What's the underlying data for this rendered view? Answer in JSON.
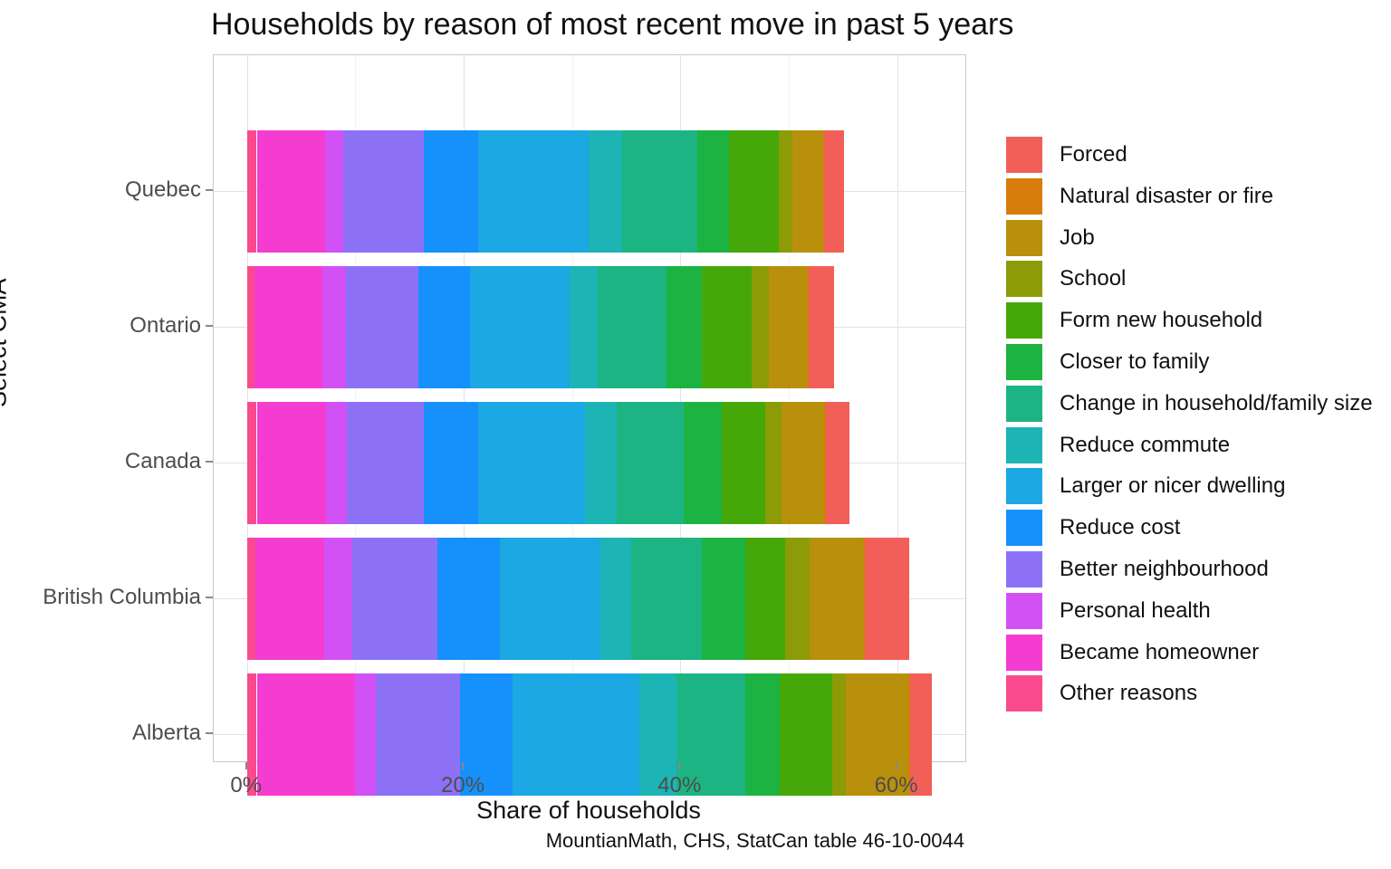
{
  "title": "Households by reason of most recent move in past 5 years",
  "caption": "MountianMath, CHS, StatCan table 46-10-0044",
  "x_axis": {
    "label": "Share of households",
    "tick_labels": [
      "0%",
      "20%",
      "40%",
      "60%"
    ],
    "tick_values": [
      0,
      20,
      40,
      60
    ],
    "minor_tick_values": [
      10,
      30,
      50
    ]
  },
  "y_axis": {
    "label": "Select CMA",
    "categories": [
      "Quebec",
      "Ontario",
      "Canada",
      "British Columbia",
      "Alberta"
    ]
  },
  "colors": {
    "grid_major": "#e3e3e3",
    "grid_minor": "#f1f1f1",
    "panel_border": "#c9c9c9",
    "axis_text": "#4d4d4d",
    "text": "#111111"
  },
  "chart_data": {
    "type": "bar",
    "orientation": "horizontal",
    "stacked": true,
    "stack_order": "reversed (last legend entry leftmost, Forced rightmost)",
    "legend_position": "right",
    "grid": "on",
    "xlim": [
      -3.07,
      66.3
    ],
    "title": "Households by reason of most recent move in past 5 years",
    "xlabel": "Share of households",
    "ylabel": "Select CMA",
    "categories": [
      "Quebec",
      "Ontario",
      "Canada",
      "British Columbia",
      "Alberta"
    ],
    "units": "percent of households",
    "series": [
      {
        "name": "Forced",
        "color": "#F25F59",
        "values": [
          1.8,
          2.4,
          2.2,
          4.1,
          2.0
        ]
      },
      {
        "name": "Natural disaster or fire",
        "color": "#D87D0B",
        "values": [
          0.1,
          0.1,
          0.1,
          0.1,
          0.2
        ]
      },
      {
        "name": "Job",
        "color": "#B8900B",
        "values": [
          2.9,
          3.5,
          4.0,
          5.0,
          5.7
        ]
      },
      {
        "name": "School",
        "color": "#8C9B07",
        "values": [
          1.2,
          1.6,
          1.5,
          2.2,
          1.3
        ]
      },
      {
        "name": "Form new household",
        "color": "#45A808",
        "values": [
          4.6,
          4.6,
          4.0,
          3.7,
          4.8
        ]
      },
      {
        "name": "Closer to family",
        "color": "#1DB342",
        "values": [
          2.9,
          3.3,
          3.5,
          4.0,
          3.2
        ]
      },
      {
        "name": "Change in household/family size",
        "color": "#1CB482",
        "values": [
          7.0,
          6.3,
          6.2,
          6.5,
          6.4
        ]
      },
      {
        "name": "Reduce commute",
        "color": "#1CB4B4",
        "values": [
          3.1,
          2.6,
          2.9,
          2.9,
          3.4
        ]
      },
      {
        "name": "Larger or nicer dwelling",
        "color": "#1BA8E3",
        "values": [
          10.2,
          9.2,
          9.9,
          9.3,
          11.7
        ]
      },
      {
        "name": "Reduce cost",
        "color": "#1690FB",
        "values": [
          5.0,
          4.8,
          5.0,
          5.7,
          4.8
        ]
      },
      {
        "name": "Better neighbourhood",
        "color": "#8C71F7",
        "values": [
          7.4,
          6.7,
          7.1,
          7.9,
          7.8
        ]
      },
      {
        "name": "Personal health",
        "color": "#D151F5",
        "values": [
          1.7,
          2.1,
          1.9,
          2.6,
          1.9
        ]
      },
      {
        "name": "Became homeowner",
        "color": "#F53CD1",
        "values": [
          6.3,
          6.3,
          6.4,
          6.3,
          9.1
        ]
      },
      {
        "name": "Other reasons",
        "color": "#FB4A8D",
        "values": [
          0.9,
          0.7,
          0.9,
          0.8,
          0.9
        ]
      }
    ]
  }
}
